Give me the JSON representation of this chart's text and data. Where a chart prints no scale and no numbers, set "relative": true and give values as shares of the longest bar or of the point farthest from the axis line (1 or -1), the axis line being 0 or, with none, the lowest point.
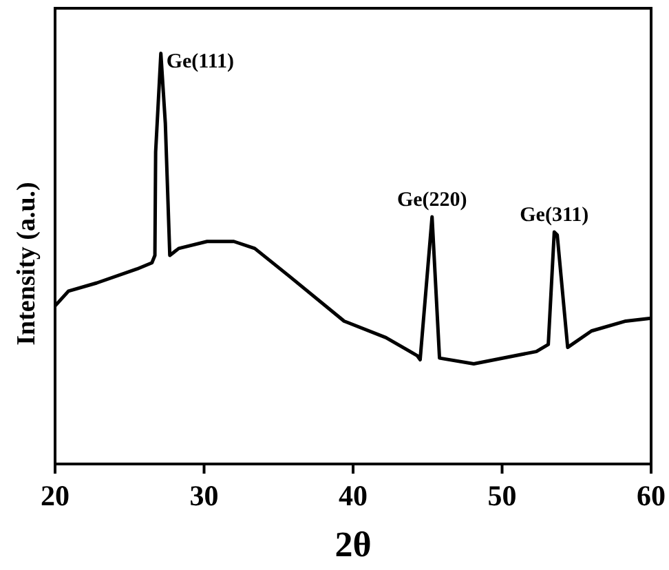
{
  "chart_data": {
    "type": "line",
    "relative": true,
    "xlabel": "2θ",
    "ylabel": "Intensity (a.u.)",
    "xlim": [
      20,
      60
    ],
    "xticks": [
      20,
      30,
      40,
      50,
      60
    ],
    "tick_labels": "x",
    "marker": "none",
    "line_style": "solid",
    "series": [
      {
        "color": "#000000",
        "x": [
          20,
          20.9,
          22.8,
          25.5,
          26.5,
          26.7,
          26.75,
          27.1,
          27.4,
          27.7,
          28.3,
          30.2,
          32.0,
          33.4,
          35.7,
          39.4,
          42.2,
          44.3,
          44.5,
          45.3,
          45.8,
          48.1,
          52.3,
          53.1,
          53.5,
          53.7,
          54.4,
          56.0,
          58.3,
          60
        ],
        "values": [
          0.385,
          0.421,
          0.441,
          0.475,
          0.49,
          0.508,
          0.76,
          1.0,
          0.83,
          0.508,
          0.525,
          0.542,
          0.542,
          0.525,
          0.458,
          0.348,
          0.308,
          0.264,
          0.254,
          0.602,
          0.258,
          0.244,
          0.274,
          0.291,
          0.565,
          0.558,
          0.284,
          0.324,
          0.348,
          0.355
        ]
      }
    ],
    "annotations": [
      {
        "text": "Ge(111)",
        "x": 27.1,
        "y": 1.0
      },
      {
        "text": "Ge(220)",
        "x": 45.3,
        "y": 0.602
      },
      {
        "text": "Ge(311)",
        "x": 53.5,
        "y": 0.565
      }
    ]
  }
}
